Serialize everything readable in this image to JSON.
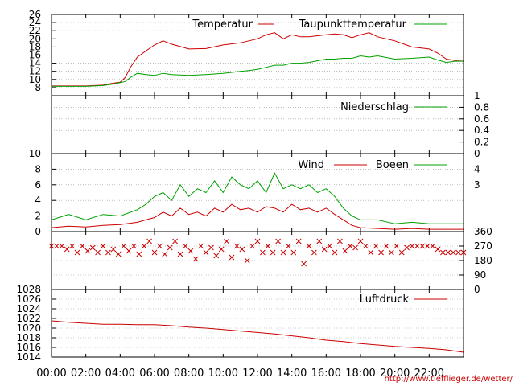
{
  "colors": {
    "red": "#cc0000",
    "green": "#00a000",
    "axis": "#000000",
    "grid": "#999999"
  },
  "x_tick_labels": [
    "00:00",
    "02:00",
    "04:00",
    "06:00",
    "08:00",
    "10:00",
    "12:00",
    "14:00",
    "16:00",
    "18:00",
    "20:00",
    "22:00"
  ],
  "source_url": "http://www.tiefflieger.de/wetter/",
  "chart_data": [
    {
      "type": "line",
      "ylim": [
        6,
        26
      ],
      "yticks": [
        8,
        10,
        12,
        14,
        16,
        18,
        20,
        22,
        24,
        26
      ],
      "x": [
        0,
        1,
        2,
        3,
        3.5,
        4,
        4.3,
        4.6,
        5,
        5.5,
        6,
        6.5,
        7,
        8,
        9,
        10,
        11,
        11.5,
        12,
        12.5,
        13,
        13.5,
        14,
        14.5,
        15,
        16,
        16.5,
        17,
        17.5,
        18,
        18.5,
        19,
        20,
        21,
        22,
        22.5,
        23,
        23.5,
        24
      ],
      "series": [
        {
          "name": "Temperatur",
          "color": "#cc0000",
          "values": [
            8.4,
            8.4,
            8.4,
            8.6,
            9,
            9.3,
            10.5,
            13,
            15.5,
            17,
            18.5,
            19.5,
            18.7,
            17.5,
            17.6,
            18.5,
            19,
            19.5,
            20,
            21,
            21.5,
            20,
            21,
            20.5,
            20.5,
            21,
            21.2,
            21,
            20.3,
            21,
            21.5,
            20.5,
            19.5,
            18,
            17.5,
            16.5,
            15,
            14.7,
            14.8
          ]
        },
        {
          "name": "Taupunkttemperatur",
          "color": "#00a000",
          "values": [
            8.3,
            8.3,
            8.3,
            8.5,
            8.8,
            9.2,
            9.5,
            10.5,
            11.5,
            11.2,
            11,
            11.5,
            11.2,
            11,
            11.2,
            11.5,
            12,
            12.2,
            12.5,
            13,
            13.5,
            13.5,
            14,
            14,
            14.2,
            15,
            15,
            15.2,
            15.2,
            15.8,
            15.5,
            15.8,
            15,
            15.2,
            15.5,
            14.8,
            14.2,
            14.5,
            14.5
          ]
        }
      ]
    },
    {
      "type": "line",
      "ylim": [
        0,
        1
      ],
      "yticks": [
        0,
        0.2,
        0.4,
        0.6,
        0.8,
        1
      ],
      "x": [
        0,
        24
      ],
      "series": [
        {
          "name": "Niederschlag",
          "color": "#00a000",
          "values": [
            0,
            0
          ]
        }
      ]
    },
    {
      "type": "line",
      "ylim": [
        0,
        10
      ],
      "yticks": [
        0,
        2,
        4,
        6,
        8,
        10
      ],
      "y2ticks": [
        3,
        4
      ],
      "x": [
        0,
        1,
        2,
        3,
        4,
        5,
        5.5,
        6,
        6.5,
        7,
        7.5,
        8,
        8.5,
        9,
        9.5,
        10,
        10.5,
        11,
        11.5,
        12,
        12.5,
        13,
        13.5,
        14,
        14.5,
        15,
        15.5,
        16,
        16.5,
        17,
        17.5,
        18,
        19,
        20,
        21,
        22,
        23,
        24
      ],
      "series": [
        {
          "name": "Wind",
          "color": "#cc0000",
          "values": [
            0.5,
            0.7,
            0.6,
            0.8,
            0.9,
            1.2,
            1.5,
            1.8,
            2.5,
            2,
            3,
            2.2,
            2.5,
            2,
            3,
            2.5,
            3.5,
            2.8,
            3,
            2.5,
            3.2,
            3,
            2.5,
            3.5,
            2.8,
            3,
            2.5,
            3,
            2.2,
            1.5,
            0.8,
            0.5,
            0.4,
            0.3,
            0.4,
            0.3,
            0.3,
            0.3
          ]
        },
        {
          "name": "Boeen",
          "color": "#00a000",
          "values": [
            1.5,
            2.2,
            1.5,
            2.2,
            2,
            2.8,
            3.5,
            4.5,
            5,
            4,
            6,
            4.5,
            5.5,
            5,
            6.5,
            5,
            7,
            6,
            5.5,
            6.5,
            5,
            7.5,
            5.5,
            6,
            5.5,
            6,
            5,
            5.5,
            4.5,
            3,
            2,
            1.5,
            1.5,
            1,
            1.2,
            1,
            1,
            1
          ]
        }
      ]
    },
    {
      "type": "scatter",
      "ylim": [
        0,
        360
      ],
      "yticks": [
        0,
        90,
        180,
        270,
        360
      ],
      "series": [
        {
          "name": "",
          "color": "#cc0000",
          "points": [
            [
              0,
              270
            ],
            [
              0.3,
              270
            ],
            [
              0.6,
              270
            ],
            [
              0.9,
              250
            ],
            [
              1.2,
              270
            ],
            [
              1.5,
              230
            ],
            [
              1.8,
              270
            ],
            [
              2.1,
              240
            ],
            [
              2.4,
              260
            ],
            [
              2.7,
              230
            ],
            [
              3,
              270
            ],
            [
              3.3,
              230
            ],
            [
              3.6,
              250
            ],
            [
              3.9,
              220
            ],
            [
              4.2,
              270
            ],
            [
              4.5,
              240
            ],
            [
              4.8,
              270
            ],
            [
              5.1,
              220
            ],
            [
              5.4,
              270
            ],
            [
              5.7,
              300
            ],
            [
              6,
              230
            ],
            [
              6.3,
              270
            ],
            [
              6.6,
              220
            ],
            [
              6.9,
              260
            ],
            [
              7.2,
              300
            ],
            [
              7.5,
              220
            ],
            [
              7.8,
              270
            ],
            [
              8.1,
              240
            ],
            [
              8.4,
              190
            ],
            [
              8.7,
              270
            ],
            [
              9,
              230
            ],
            [
              9.3,
              260
            ],
            [
              9.6,
              210
            ],
            [
              9.9,
              250
            ],
            [
              10.2,
              300
            ],
            [
              10.5,
              200
            ],
            [
              10.8,
              270
            ],
            [
              11.1,
              250
            ],
            [
              11.4,
              180
            ],
            [
              11.7,
              270
            ],
            [
              12,
              300
            ],
            [
              12.3,
              230
            ],
            [
              12.6,
              270
            ],
            [
              12.9,
              230
            ],
            [
              13.2,
              300
            ],
            [
              13.5,
              230
            ],
            [
              13.8,
              270
            ],
            [
              14.1,
              230
            ],
            [
              14.4,
              300
            ],
            [
              14.7,
              160
            ],
            [
              15,
              270
            ],
            [
              15.3,
              230
            ],
            [
              15.6,
              300
            ],
            [
              15.9,
              250
            ],
            [
              16.2,
              270
            ],
            [
              16.5,
              230
            ],
            [
              16.8,
              300
            ],
            [
              17.1,
              240
            ],
            [
              17.4,
              270
            ],
            [
              17.7,
              260
            ],
            [
              18,
              300
            ],
            [
              18.3,
              270
            ],
            [
              18.6,
              230
            ],
            [
              18.9,
              270
            ],
            [
              19.2,
              230
            ],
            [
              19.5,
              270
            ],
            [
              19.8,
              230
            ],
            [
              20.1,
              270
            ],
            [
              20.4,
              230
            ],
            [
              20.7,
              260
            ],
            [
              21,
              270
            ],
            [
              21.3,
              270
            ],
            [
              21.6,
              270
            ],
            [
              21.9,
              270
            ],
            [
              22.2,
              270
            ],
            [
              22.5,
              250
            ],
            [
              22.8,
              230
            ],
            [
              23.1,
              230
            ],
            [
              23.4,
              230
            ],
            [
              23.7,
              230
            ],
            [
              24,
              230
            ]
          ]
        }
      ]
    },
    {
      "type": "line",
      "ylim": [
        1014,
        1028
      ],
      "yticks": [
        1014,
        1016,
        1018,
        1020,
        1022,
        1024,
        1026,
        1028
      ],
      "x": [
        0,
        1,
        2,
        3,
        4,
        5,
        6,
        7,
        8,
        9,
        10,
        11,
        12,
        13,
        14,
        15,
        16,
        17,
        18,
        19,
        20,
        21,
        22,
        23,
        24
      ],
      "series": [
        {
          "name": "Luftdruck",
          "color": "#cc0000",
          "values": [
            1021.5,
            1021.2,
            1021,
            1020.8,
            1020.8,
            1020.7,
            1020.7,
            1020.5,
            1020.2,
            1020,
            1019.7,
            1019.4,
            1019.1,
            1018.8,
            1018.4,
            1018,
            1017.5,
            1017.2,
            1016.8,
            1016.5,
            1016.2,
            1016,
            1015.8,
            1015.5,
            1015
          ]
        }
      ]
    }
  ]
}
